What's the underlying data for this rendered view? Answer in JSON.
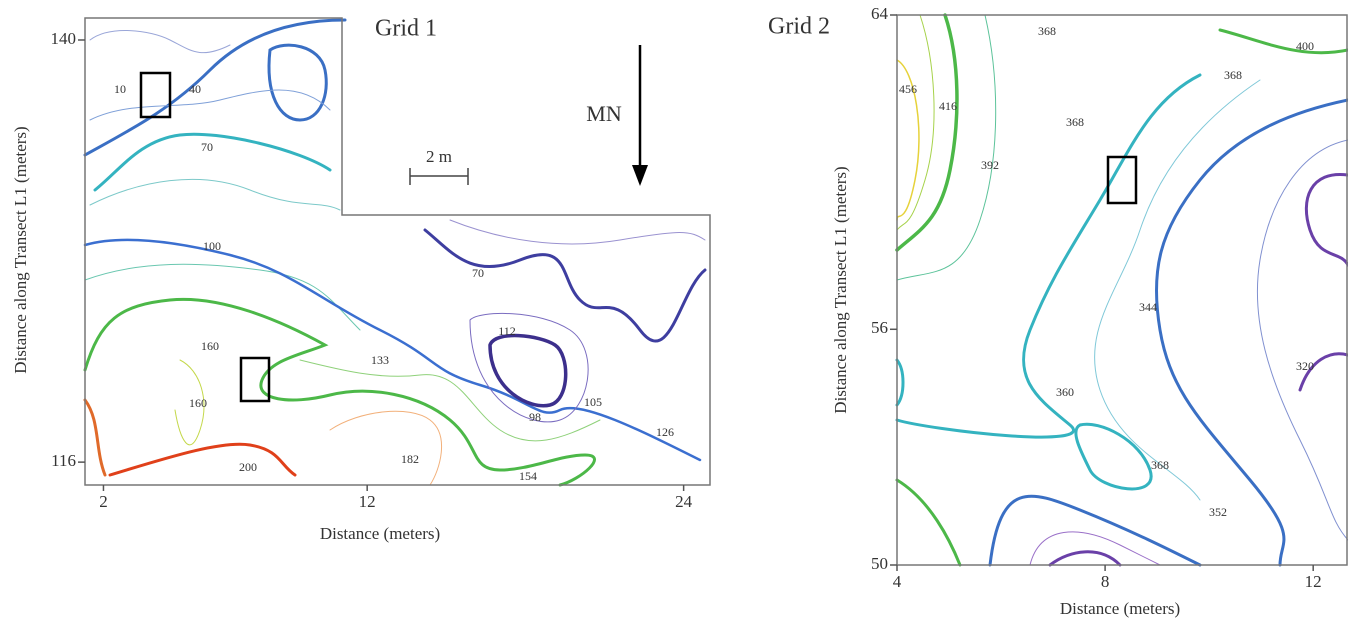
{
  "chart_data": [
    {
      "type": "contour",
      "title": "Grid 1",
      "xlabel": "Distance (meters)",
      "ylabel": "Distance along Transect L1 (meters)",
      "xlim": [
        1.3,
        25
      ],
      "ylim": [
        114.7,
        141.25
      ],
      "xticks": [
        2,
        12,
        24
      ],
      "yticks": [
        116,
        140
      ],
      "contour_labels": [
        10,
        40,
        70,
        100,
        160,
        160,
        133,
        112,
        70,
        98,
        105,
        126,
        182,
        154,
        200
      ],
      "north_label": "MN",
      "scale_label": "2 m"
    },
    {
      "type": "contour",
      "title": "Grid 2",
      "xlabel": "Distance (meters)",
      "ylabel": "Distance along Transect L1 (meters)",
      "xlim": [
        4,
        12.65
      ],
      "ylim": [
        50,
        64
      ],
      "xticks": [
        4,
        8,
        12
      ],
      "yticks": [
        50,
        56,
        64
      ],
      "contour_labels": [
        368,
        400,
        456,
        416,
        368,
        368,
        392,
        344,
        320,
        360,
        368,
        352
      ]
    }
  ]
}
